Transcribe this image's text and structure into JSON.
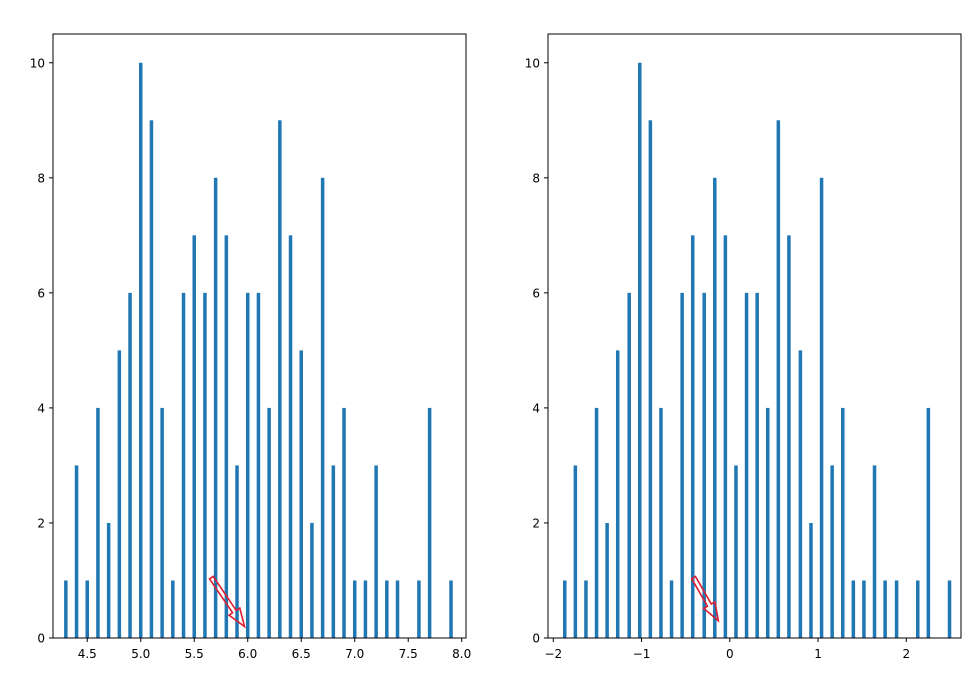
{
  "chart_data": [
    {
      "type": "bar",
      "bar_color": "#1f77b4",
      "grid": false,
      "xlim": [
        4.18,
        8.04
      ],
      "ylim": [
        0,
        10.5
      ],
      "xticks": [
        4.5,
        5.0,
        5.5,
        6.0,
        6.5,
        7.0,
        7.5,
        8.0
      ],
      "xtick_labels": [
        "4.5",
        "5.0",
        "5.5",
        "6.0",
        "6.5",
        "7.0",
        "7.5",
        "8.0"
      ],
      "yticks": [
        0,
        2,
        4,
        6,
        8,
        10
      ],
      "ytick_labels": [
        "0",
        "2",
        "4",
        "6",
        "8",
        "10"
      ],
      "x": [
        4.3,
        4.4,
        4.5,
        4.6,
        4.7,
        4.8,
        4.9,
        5.0,
        5.1,
        5.2,
        5.3,
        5.4,
        5.5,
        5.6,
        5.7,
        5.8,
        5.9,
        6.0,
        6.1,
        6.2,
        6.3,
        6.4,
        6.5,
        6.6,
        6.7,
        6.8,
        6.9,
        7.0,
        7.1,
        7.2,
        7.3,
        7.4,
        7.6,
        7.7,
        7.9
      ],
      "values": [
        1,
        3,
        1,
        4,
        2,
        5,
        6,
        10,
        9,
        4,
        1,
        6,
        7,
        6,
        8,
        7,
        3,
        6,
        6,
        4,
        9,
        7,
        5,
        2,
        8,
        3,
        4,
        1,
        1,
        3,
        1,
        1,
        1,
        4,
        1
      ],
      "annotation": {
        "type": "arrow",
        "color": "#dc1e32",
        "from": [
          5.66,
          1.05
        ],
        "to": [
          5.97,
          0.2
        ]
      }
    },
    {
      "type": "bar",
      "bar_color": "#1f77b4",
      "grid": false,
      "xlim": [
        -2.06,
        2.62
      ],
      "ylim": [
        0,
        10.5
      ],
      "xticks": [
        -2,
        -1,
        0,
        1,
        2
      ],
      "xtick_labels": [
        "−2",
        "−1",
        "0",
        "1",
        "2"
      ],
      "yticks": [
        0,
        2,
        4,
        6,
        8,
        10
      ],
      "ytick_labels": [
        "0",
        "2",
        "4",
        "6",
        "8",
        "10"
      ],
      "x": [
        -1.87,
        -1.75,
        -1.63,
        -1.51,
        -1.39,
        -1.27,
        -1.14,
        -1.02,
        -0.9,
        -0.78,
        -0.66,
        -0.54,
        -0.42,
        -0.29,
        -0.17,
        -0.05,
        0.07,
        0.19,
        0.31,
        0.43,
        0.55,
        0.67,
        0.8,
        0.92,
        1.04,
        1.16,
        1.28,
        1.4,
        1.52,
        1.64,
        1.76,
        1.89,
        2.13,
        2.25,
        2.49
      ],
      "values": [
        1,
        3,
        1,
        4,
        2,
        5,
        6,
        10,
        9,
        4,
        1,
        6,
        7,
        6,
        8,
        7,
        3,
        6,
        6,
        4,
        9,
        7,
        5,
        2,
        8,
        3,
        4,
        1,
        1,
        3,
        1,
        1,
        1,
        4,
        1
      ],
      "annotation": {
        "type": "arrow",
        "color": "#dc1e32",
        "from": [
          -0.41,
          1.05
        ],
        "to": [
          -0.13,
          0.3
        ]
      }
    }
  ]
}
